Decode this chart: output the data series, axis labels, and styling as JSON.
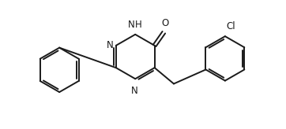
{
  "bg_color": "#ffffff",
  "line_color": "#1a1a1a",
  "line_width": 1.4,
  "font_size": 8.5,
  "fig_width": 3.62,
  "fig_height": 1.64,
  "dpi": 100,
  "xlim": [
    0,
    9.2
  ],
  "ylim": [
    0,
    4.05
  ]
}
